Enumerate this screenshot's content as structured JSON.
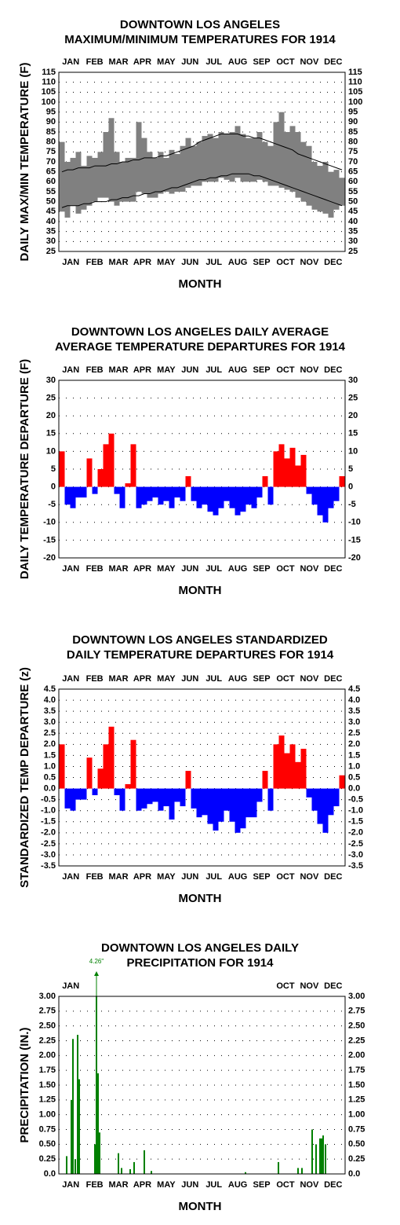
{
  "chart_data": [
    {
      "type": "range",
      "title": [
        "DOWNTOWN LOS ANGELES",
        "MAXIMUM/MINIMUM TEMPERATURES FOR 1914"
      ],
      "ylabel": "DAILY MAX/MIN TEMPERATURE (F)",
      "xlabel": "MONTH",
      "categories": [
        "JAN",
        "FEB",
        "MAR",
        "APR",
        "MAY",
        "JUN",
        "JUL",
        "AUG",
        "SEP",
        "OCT",
        "NOV",
        "DEC"
      ],
      "xlim": [
        0,
        365
      ],
      "x": [
        4,
        11,
        18,
        25,
        32,
        39,
        46,
        53,
        60,
        67,
        74,
        81,
        88,
        95,
        102,
        109,
        116,
        123,
        130,
        137,
        144,
        151,
        158,
        165,
        172,
        179,
        186,
        193,
        200,
        207,
        214,
        221,
        228,
        235,
        242,
        249,
        256,
        263,
        270,
        277,
        284,
        291,
        298,
        305,
        312,
        319,
        326,
        333,
        340,
        347,
        354,
        361
      ],
      "high": [
        80,
        70,
        72,
        75,
        68,
        73,
        72,
        75,
        85,
        92,
        75,
        70,
        72,
        72,
        90,
        82,
        75,
        72,
        75,
        72,
        76,
        74,
        78,
        82,
        78,
        80,
        83,
        84,
        82,
        85,
        84,
        85,
        88,
        84,
        82,
        82,
        85,
        80,
        78,
        90,
        95,
        85,
        88,
        85,
        80,
        78,
        70,
        68,
        70,
        65,
        66,
        62
      ],
      "low": [
        45,
        42,
        48,
        44,
        46,
        48,
        50,
        52,
        52,
        50,
        48,
        50,
        50,
        50,
        55,
        54,
        52,
        52,
        54,
        55,
        54,
        55,
        55,
        57,
        58,
        58,
        60,
        60,
        60,
        62,
        61,
        60,
        62,
        60,
        60,
        60,
        61,
        60,
        58,
        58,
        57,
        56,
        55,
        52,
        50,
        48,
        46,
        45,
        44,
        42,
        46,
        48
      ],
      "normal_high": [
        65,
        66,
        66,
        67,
        67,
        67,
        68,
        68,
        68,
        69,
        69,
        70,
        70,
        71,
        71,
        72,
        72,
        72,
        73,
        73,
        74,
        75,
        76,
        77,
        78,
        80,
        81,
        82,
        83,
        84,
        84,
        84,
        84,
        83,
        83,
        82,
        82,
        81,
        80,
        79,
        78,
        77,
        76,
        74,
        73,
        72,
        71,
        70,
        69,
        68,
        67,
        66
      ],
      "normal_low": [
        47,
        48,
        48,
        48,
        49,
        49,
        50,
        50,
        50,
        51,
        51,
        52,
        52,
        53,
        53,
        54,
        54,
        55,
        55,
        56,
        57,
        57,
        58,
        59,
        60,
        61,
        61,
        62,
        62,
        63,
        63,
        64,
        64,
        64,
        64,
        63,
        63,
        62,
        61,
        60,
        59,
        58,
        57,
        56,
        55,
        54,
        53,
        52,
        51,
        50,
        49,
        48
      ],
      "color": "#808080",
      "normal_color": "#000000",
      "ylim": [
        25,
        115
      ],
      "yticks": [
        25,
        30,
        35,
        40,
        45,
        50,
        55,
        60,
        65,
        70,
        75,
        80,
        85,
        90,
        95,
        100,
        105,
        110,
        115
      ],
      "grid": true
    },
    {
      "type": "bar",
      "title": [
        "DOWNTOWN LOS ANGELES DAILY AVERAGE",
        "AVERAGE TEMPERATURE DEPARTURES FOR 1914"
      ],
      "ylabel": "DAILY TEMPERATURE DEPARTURE (F)",
      "xlabel": "MONTH",
      "categories": [
        "JAN",
        "FEB",
        "MAR",
        "APR",
        "MAY",
        "JUN",
        "JUL",
        "AUG",
        "SEP",
        "OCT",
        "NOV",
        "DEC"
      ],
      "xlim": [
        0,
        365
      ],
      "x": [
        4,
        11,
        18,
        25,
        32,
        39,
        46,
        53,
        60,
        67,
        74,
        81,
        88,
        95,
        102,
        109,
        116,
        123,
        130,
        137,
        144,
        151,
        158,
        165,
        172,
        179,
        186,
        193,
        200,
        207,
        214,
        221,
        228,
        235,
        242,
        249,
        256,
        263,
        270,
        277,
        284,
        291,
        298,
        305,
        312,
        319,
        326,
        333,
        340,
        347,
        354,
        361
      ],
      "values": [
        10,
        -5,
        -6,
        -3,
        -3,
        8,
        -2,
        5,
        12,
        15,
        -2,
        -6,
        1,
        12,
        -6,
        -5,
        -4,
        -3,
        -5,
        -4,
        -6,
        -3,
        -4,
        3,
        -4,
        -6,
        -5,
        -7,
        -8,
        -6,
        -4,
        -6,
        -8,
        -7,
        -5,
        -6,
        -3,
        3,
        -5,
        10,
        12,
        8,
        11,
        6,
        9,
        -2,
        -5,
        -8,
        -10,
        -6,
        -4,
        3
      ],
      "positive_color": "#ff0000",
      "negative_color": "#0000ff",
      "ylim": [
        -20,
        30
      ],
      "yticks": [
        -20,
        -15,
        -10,
        -5,
        0,
        5,
        10,
        15,
        20,
        25,
        30
      ],
      "grid": true
    },
    {
      "type": "bar",
      "title": [
        "DOWNTOWN LOS ANGELES STANDARDIZED",
        "DAILY TEMPERATURE DEPARTURES FOR 1914"
      ],
      "ylabel": "STANDARDIZED TEMP DEPARTURE (z)",
      "xlabel": "MONTH",
      "categories": [
        "JAN",
        "FEB",
        "MAR",
        "APR",
        "MAY",
        "JUN",
        "JUL",
        "AUG",
        "SEP",
        "OCT",
        "NOV",
        "DEC"
      ],
      "xlim": [
        0,
        365
      ],
      "x": [
        4,
        11,
        18,
        25,
        32,
        39,
        46,
        53,
        60,
        67,
        74,
        81,
        88,
        95,
        102,
        109,
        116,
        123,
        130,
        137,
        144,
        151,
        158,
        165,
        172,
        179,
        186,
        193,
        200,
        207,
        214,
        221,
        228,
        235,
        242,
        249,
        256,
        263,
        270,
        277,
        284,
        291,
        298,
        305,
        312,
        319,
        326,
        333,
        340,
        347,
        354,
        361
      ],
      "values": [
        2.0,
        -0.9,
        -1.0,
        -0.5,
        -0.5,
        1.4,
        -0.3,
        0.9,
        2.0,
        2.8,
        -0.3,
        -1.0,
        0.2,
        2.2,
        -1.0,
        -0.9,
        -0.7,
        -0.6,
        -1.0,
        -0.8,
        -1.4,
        -0.6,
        -0.8,
        0.8,
        -0.9,
        -1.3,
        -1.2,
        -1.6,
        -1.9,
        -1.5,
        -1.0,
        -1.5,
        -2.0,
        -1.8,
        -1.3,
        -1.3,
        -0.6,
        0.8,
        -1.0,
        2.0,
        2.4,
        1.6,
        2.0,
        1.2,
        1.8,
        -0.4,
        -1.0,
        -1.6,
        -2.0,
        -1.2,
        -0.8,
        0.6
      ],
      "positive_color": "#ff0000",
      "negative_color": "#0000ff",
      "ylim": [
        -3.5,
        4.5
      ],
      "yticks": [
        -3.5,
        {
          "value": -3,
          "label": "-3.0"
        },
        -2.5,
        {
          "value": -2,
          "label": "-2.0"
        },
        -1.5,
        {
          "value": -1,
          "label": "-1.0"
        },
        -0.5,
        {
          "value": 0,
          "label": "0.0"
        },
        0.5,
        {
          "value": 1,
          "label": "1.0"
        },
        1.5,
        {
          "value": 2,
          "label": "2.0"
        },
        2.5,
        {
          "value": 3,
          "label": "3.0"
        },
        3.5,
        {
          "value": 4,
          "label": "4.0"
        },
        4.5
      ],
      "grid": true
    },
    {
      "type": "precip",
      "title": [
        "DOWNTOWN LOS ANGELES DAILY",
        "PRECIPITATION FOR 1914"
      ],
      "ylabel": "PRECIPITATION (IN.)",
      "xlabel": "MONTH",
      "categories": [
        "JAN",
        "FEB",
        "MAR",
        "APR",
        "MAY",
        "JUN",
        "JUL",
        "AUG",
        "SEP",
        "OCT",
        "NOV",
        "DEC"
      ],
      "top_categories": [
        "JAN",
        null,
        null,
        null,
        null,
        null,
        null,
        null,
        null,
        "OCT",
        "NOV",
        "DEC"
      ],
      "xlim": [
        0,
        365
      ],
      "x": [
        10,
        16,
        18,
        21,
        24,
        26,
        46,
        48,
        50,
        52,
        76,
        80,
        91,
        96,
        109,
        118,
        238,
        280,
        305,
        310,
        323,
        328,
        333,
        335,
        337,
        340
      ],
      "values": [
        0.3,
        1.25,
        2.28,
        0.25,
        2.35,
        1.6,
        0.5,
        4.26,
        1.7,
        0.7,
        0.35,
        0.1,
        0.08,
        0.2,
        0.4,
        0.05,
        0.03,
        0.2,
        0.1,
        0.1,
        0.75,
        0.5,
        0.6,
        0.6,
        0.65,
        0.5
      ],
      "value_labels": [
        null,
        null,
        null,
        null,
        null,
        null,
        null,
        "4.26\"",
        null,
        null,
        null,
        null,
        null,
        null,
        null,
        null,
        null,
        null,
        null,
        null,
        null,
        null,
        null,
        null,
        null,
        null
      ],
      "color": "#008000",
      "ylim": [
        0,
        3
      ],
      "yticks": [
        {
          "value": 0,
          "label": "0.0"
        },
        {
          "value": 0.25,
          "label": "0.25"
        },
        {
          "value": 0.5,
          "label": "0.50"
        },
        {
          "value": 0.75,
          "label": "0.75"
        },
        {
          "value": 1,
          "label": "1.00"
        },
        {
          "value": 1.25,
          "label": "1.25"
        },
        {
          "value": 1.5,
          "label": "1.50"
        },
        {
          "value": 1.75,
          "label": "1.75"
        },
        {
          "value": 2,
          "label": "2.00"
        },
        {
          "value": 2.25,
          "label": "2.25"
        },
        {
          "value": 2.5,
          "label": "2.50"
        },
        {
          "value": 2.75,
          "label": "2.75"
        },
        {
          "value": 3,
          "label": "3.00"
        }
      ],
      "grid": true
    }
  ]
}
